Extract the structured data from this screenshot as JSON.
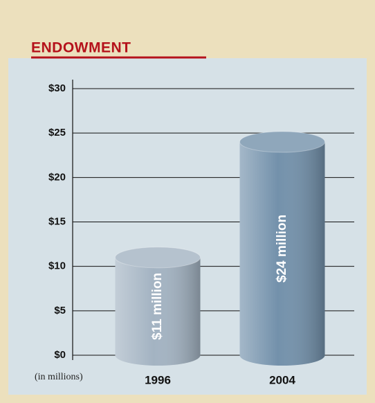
{
  "chart_data": {
    "type": "bar",
    "title": "ENDOWMENT",
    "y_axis_label": "(in millions)",
    "categories": [
      "1996",
      "2004"
    ],
    "values": [
      11,
      24
    ],
    "value_labels": [
      "$11 million",
      "$24 million"
    ],
    "colors": [
      "#a3b3c2",
      "#7391ab"
    ],
    "ylim": [
      0,
      30
    ],
    "yticks": [
      {
        "value": 0,
        "label": "$0"
      },
      {
        "value": 5,
        "label": "$5"
      },
      {
        "value": 10,
        "label": "$10"
      },
      {
        "value": 15,
        "label": "$15"
      },
      {
        "value": 20,
        "label": "$20"
      },
      {
        "value": 25,
        "label": "$25"
      },
      {
        "value": 30,
        "label": "$30"
      }
    ],
    "grid": true
  }
}
